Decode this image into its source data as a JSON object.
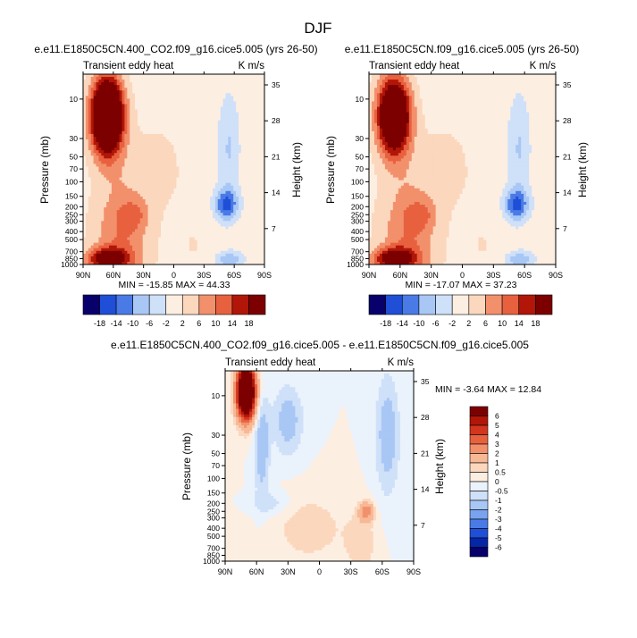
{
  "title": "DJF",
  "colors": {
    "ramp": [
      "#08006b",
      "#0626a8",
      "#1f4fd6",
      "#4a7ae6",
      "#7aa3ef",
      "#a8c7f5",
      "#cfe0f9",
      "#eaf2fc",
      "#fdeee2",
      "#fbd7bd",
      "#f7b896",
      "#f3906c",
      "#e8613f",
      "#d3361f",
      "#b11608",
      "#7d0000"
    ]
  },
  "chart_data": [
    {
      "type": "heatmap",
      "panel": "top-left",
      "title": "e.e11.E1850C5CN.400_CO2.f09_g16.cice5.005 (yrs 26-50)",
      "left_title": "Transient eddy heat",
      "units": "K m/s",
      "xlabel": "",
      "ylabel": "Pressure (mb)",
      "ylabel_right": "Height (km)",
      "x_ticks": [
        "90N",
        "60N",
        "30N",
        "0",
        "30S",
        "60S",
        "90S"
      ],
      "x_values": [
        90,
        60,
        30,
        0,
        -30,
        -60,
        -90
      ],
      "y_ticks": [
        "10",
        "30",
        "50",
        "70",
        "100",
        "150",
        "200",
        "250",
        "300",
        "400",
        "500",
        "700",
        "850",
        "1000"
      ],
      "y_values": [
        10,
        30,
        50,
        70,
        100,
        150,
        200,
        250,
        300,
        400,
        500,
        700,
        850,
        1000
      ],
      "ylim_mb": [
        5,
        1000
      ],
      "height_ticks": [
        "35",
        "28",
        "21",
        "14",
        "7"
      ],
      "height_values": [
        35,
        28,
        21,
        14,
        7
      ],
      "min_max_text": "MIN = -15.85  MAX = 44.33",
      "min": -15.85,
      "max": 44.33,
      "features": [
        {
          "lat": 65,
          "p": 18,
          "value": 44
        },
        {
          "lat": 35,
          "p": 500,
          "value": 12
        },
        {
          "lat": 65,
          "p": 850,
          "value": 20
        },
        {
          "lat": -52,
          "p": 200,
          "value": -15
        },
        {
          "lat": -55,
          "p": 850,
          "value": -10
        }
      ],
      "legend": {
        "type": "colorbar-horizontal",
        "labels": [
          "-18",
          "-14",
          "-10",
          "-6",
          "-2",
          "2",
          "6",
          "10",
          "14",
          "18"
        ]
      }
    },
    {
      "type": "heatmap",
      "panel": "top-right",
      "title": "e.e11.E1850C5CN.f09_g16.cice5.005 (yrs 26-50)",
      "left_title": "Transient eddy heat",
      "units": "K m/s",
      "xlabel": "",
      "ylabel": "Pressure (mb)",
      "ylabel_right": "Height (km)",
      "x_ticks": [
        "90N",
        "60N",
        "30N",
        "0",
        "30S",
        "60S",
        "90S"
      ],
      "x_values": [
        90,
        60,
        30,
        0,
        -30,
        -60,
        -90
      ],
      "y_ticks": [
        "10",
        "30",
        "50",
        "70",
        "100",
        "150",
        "200",
        "250",
        "300",
        "400",
        "500",
        "700",
        "850",
        "1000"
      ],
      "y_values": [
        10,
        30,
        50,
        70,
        100,
        150,
        200,
        250,
        300,
        400,
        500,
        700,
        850,
        1000
      ],
      "ylim_mb": [
        5,
        1000
      ],
      "height_ticks": [
        "35",
        "28",
        "21",
        "14",
        "7"
      ],
      "height_values": [
        35,
        28,
        21,
        14,
        7
      ],
      "min_max_text": "MIN = -17.07  MAX = 37.23",
      "min": -17.07,
      "max": 37.23,
      "features": [
        {
          "lat": 65,
          "p": 18,
          "value": 37
        },
        {
          "lat": 35,
          "p": 500,
          "value": 12
        },
        {
          "lat": 65,
          "p": 850,
          "value": 18
        },
        {
          "lat": -52,
          "p": 200,
          "value": -17
        },
        {
          "lat": -55,
          "p": 850,
          "value": -10
        }
      ],
      "legend": {
        "type": "colorbar-horizontal",
        "labels": [
          "-18",
          "-14",
          "-10",
          "-6",
          "-2",
          "2",
          "6",
          "10",
          "14",
          "18"
        ]
      }
    },
    {
      "type": "heatmap",
      "panel": "bottom-difference",
      "title": "e.e11.E1850C5CN.400_CO2.f09_g16.cice5.005 - e.e11.E1850C5CN.f09_g16.cice5.005",
      "left_title": "Transient eddy heat",
      "units": "K m/s",
      "xlabel": "",
      "ylabel": "Pressure (mb)",
      "ylabel_right": "Height (km)",
      "x_ticks": [
        "90N",
        "60N",
        "30N",
        "0",
        "30S",
        "60S",
        "90S"
      ],
      "x_values": [
        90,
        60,
        30,
        0,
        -30,
        -60,
        -90
      ],
      "y_ticks": [
        "10",
        "30",
        "50",
        "70",
        "100",
        "150",
        "200",
        "250",
        "300",
        "400",
        "500",
        "700",
        "850",
        "1000"
      ],
      "y_values": [
        10,
        30,
        50,
        70,
        100,
        150,
        200,
        250,
        300,
        400,
        500,
        700,
        850,
        1000
      ],
      "ylim_mb": [
        5,
        1000
      ],
      "height_ticks": [
        "35",
        "28",
        "21",
        "14",
        "7"
      ],
      "height_values": [
        35,
        28,
        21,
        14,
        7
      ],
      "min_max_text": "MIN = -3.64  MAX = 12.84",
      "min": -3.64,
      "max": 12.84,
      "features": [
        {
          "lat": 70,
          "p": 10,
          "value": 12.8
        },
        {
          "lat": 55,
          "p": 40,
          "value": -1
        },
        {
          "lat": -45,
          "p": 250,
          "value": 1.5
        },
        {
          "lat": -65,
          "p": 30,
          "value": -1
        }
      ],
      "legend": {
        "type": "colorbar-vertical",
        "labels": [
          "6",
          "5",
          "4",
          "3",
          "2",
          "1",
          "0.5",
          "0",
          "-0.5",
          "-1",
          "-2",
          "-3",
          "-4",
          "-5",
          "-6"
        ]
      }
    }
  ]
}
